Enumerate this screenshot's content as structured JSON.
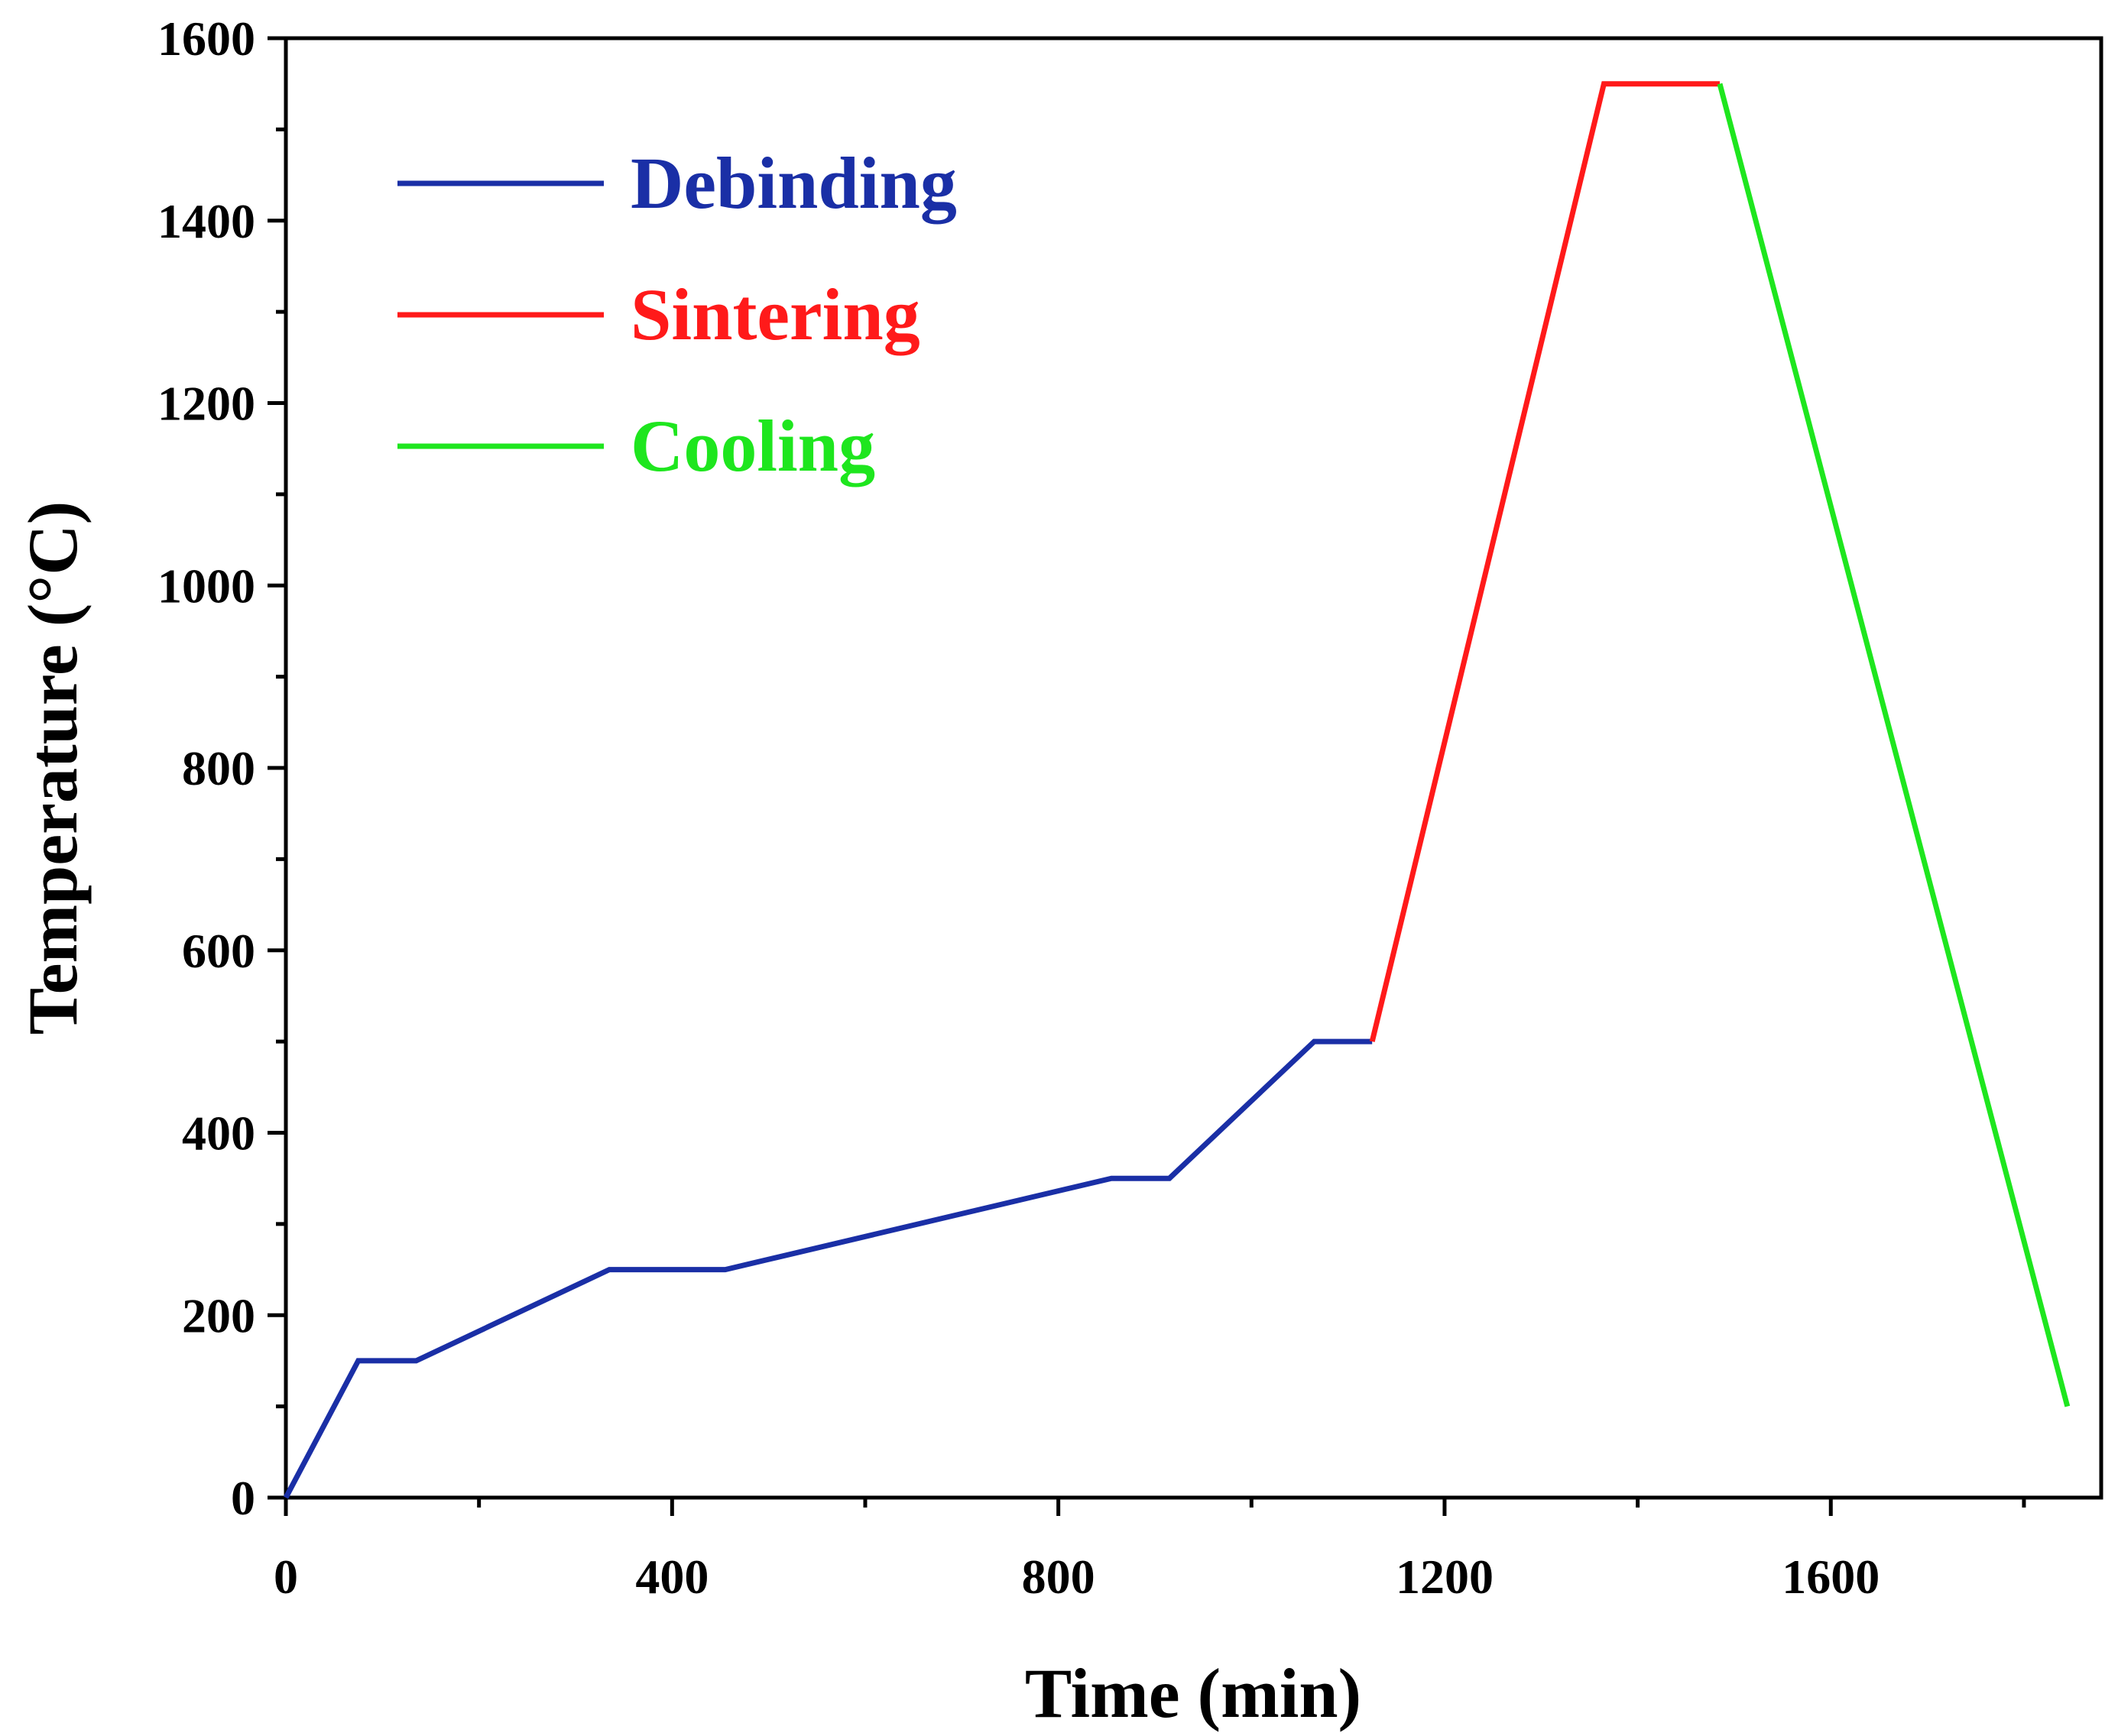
{
  "chart_data": {
    "type": "line",
    "title": "",
    "xlabel": "Time (min)",
    "ylabel": "Temperature (°C)",
    "xlim": [
      0,
      1880
    ],
    "ylim": [
      0,
      1600
    ],
    "xticks": [
      0,
      400,
      800,
      1200,
      1600
    ],
    "xticks_minor": [
      200,
      600,
      1000,
      1400,
      1800
    ],
    "yticks": [
      0,
      200,
      400,
      600,
      800,
      1000,
      1200,
      1400,
      1600
    ],
    "yticks_minor": [
      100,
      300,
      500,
      700,
      900,
      1100,
      1300,
      1500
    ],
    "grid": false,
    "legend_position": "top-left",
    "series": [
      {
        "name": "Debinding",
        "color": "#1a2fa6",
        "x": [
          0,
          75,
          135,
          335,
          455,
          855,
          915,
          1065,
          1125
        ],
        "y": [
          0,
          150,
          150,
          250,
          250,
          350,
          350,
          500,
          500
        ]
      },
      {
        "name": "Sintering",
        "color": "#ff1a1a",
        "x": [
          1125,
          1365,
          1485
        ],
        "y": [
          500,
          1550,
          1550
        ]
      },
      {
        "name": "Cooling",
        "color": "#1ee61e",
        "x": [
          1485,
          1845
        ],
        "y": [
          1550,
          100
        ]
      }
    ]
  }
}
